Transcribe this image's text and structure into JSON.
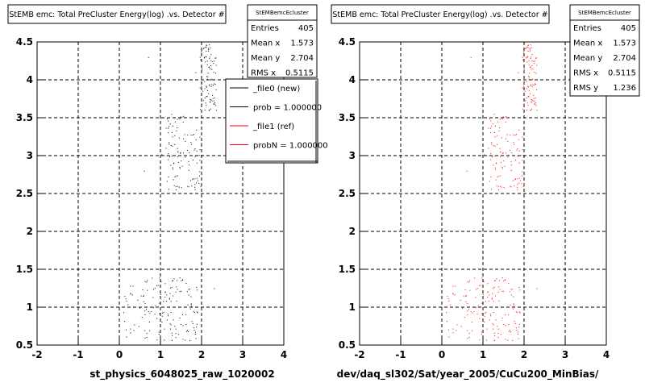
{
  "footer_text": "",
  "chart_data": [
    {
      "type": "scatter",
      "title": "StEMB emc: Total PreCluster Energy(log) .vs. Detector #",
      "xlabel": "st_physics_6048025_raw_1020002",
      "xlim": [
        -2,
        4
      ],
      "ylim": [
        0.5,
        4.5
      ],
      "xticks": [
        "-2",
        "-1",
        "0",
        "1",
        "2",
        "3",
        "4"
      ],
      "yticks": [
        "0.5",
        "1",
        "1.5",
        "2",
        "2.5",
        "3",
        "3.5",
        "4",
        "4.5"
      ],
      "grid": true,
      "marker_color": "#000000",
      "stats": {
        "name": "StEMBemcEcluster",
        "rows": [
          {
            "label": "Entries",
            "value": "405"
          },
          {
            "label": "Mean x",
            "value": "1.573"
          },
          {
            "label": "Mean y",
            "value": "2.704"
          },
          {
            "label": "RMS x",
            "value": "0.5115"
          }
        ]
      },
      "legend": {
        "placement": "top-right",
        "entries": [
          {
            "label": "_file0 (new)",
            "color": "#000000"
          },
          {
            "label": "prob = 1.000000",
            "color": "#000000"
          },
          {
            "label": "_file1 (ref)",
            "color": "#ff0000"
          },
          {
            "label": "probN = 1.000000",
            "color": "#ff0000"
          }
        ]
      },
      "clusters": [
        {
          "x": [
            1.95,
            2.35
          ],
          "y": [
            3.6,
            4.5
          ],
          "n": 95
        },
        {
          "x": [
            1.0,
            2.0
          ],
          "y": [
            2.55,
            3.4
          ],
          "n": 95
        },
        {
          "x": [
            0.1,
            1.9
          ],
          "y": [
            0.55,
            1.4
          ],
          "n": 150
        },
        {
          "x": [
            1.1,
            1.6
          ],
          "y": [
            3.3,
            3.55
          ],
          "n": 15
        }
      ],
      "outliers": [
        {
          "x": 0.7,
          "y": 4.3
        },
        {
          "x": 0.6,
          "y": 2.8
        },
        {
          "x": 2.3,
          "y": 1.25
        },
        {
          "x": 1.85,
          "y": 4.1
        }
      ]
    },
    {
      "type": "scatter",
      "title": "StEMB emc: Total PreCluster Energy(log) .vs. Detector #",
      "xlabel": "dev/daq_sl302/Sat/year_2005/CuCu200_MinBias/",
      "xlim": [
        -2,
        4
      ],
      "ylim": [
        0.5,
        4.5
      ],
      "xticks": [
        "-2",
        "-1",
        "0",
        "1",
        "2",
        "3",
        "4"
      ],
      "yticks": [
        "0.5",
        "1",
        "1.5",
        "2",
        "2.5",
        "3",
        "3.5",
        "4",
        "4.5"
      ],
      "grid": true,
      "marker_color": "#ff0000",
      "stats": {
        "name": "StEMBemcEcluster",
        "rows": [
          {
            "label": "Entries",
            "value": "405"
          },
          {
            "label": "Mean x",
            "value": "1.573"
          },
          {
            "label": "Mean y",
            "value": "2.704"
          },
          {
            "label": "RMS x",
            "value": "0.5115"
          },
          {
            "label": "RMS y",
            "value": "1.236"
          }
        ]
      },
      "clusters": [
        {
          "x": [
            1.95,
            2.3
          ],
          "y": [
            3.6,
            4.5
          ],
          "n": 95
        },
        {
          "x": [
            1.0,
            2.0
          ],
          "y": [
            2.55,
            3.4
          ],
          "n": 95
        },
        {
          "x": [
            0.1,
            1.9
          ],
          "y": [
            0.55,
            1.4
          ],
          "n": 150
        },
        {
          "x": [
            1.1,
            1.6
          ],
          "y": [
            3.3,
            3.55
          ],
          "n": 15
        }
      ],
      "outliers": [
        {
          "x": 0.7,
          "y": 4.3
        },
        {
          "x": 0.6,
          "y": 2.8
        },
        {
          "x": 2.3,
          "y": 1.25
        },
        {
          "x": 1.85,
          "y": 4.1
        }
      ]
    }
  ]
}
